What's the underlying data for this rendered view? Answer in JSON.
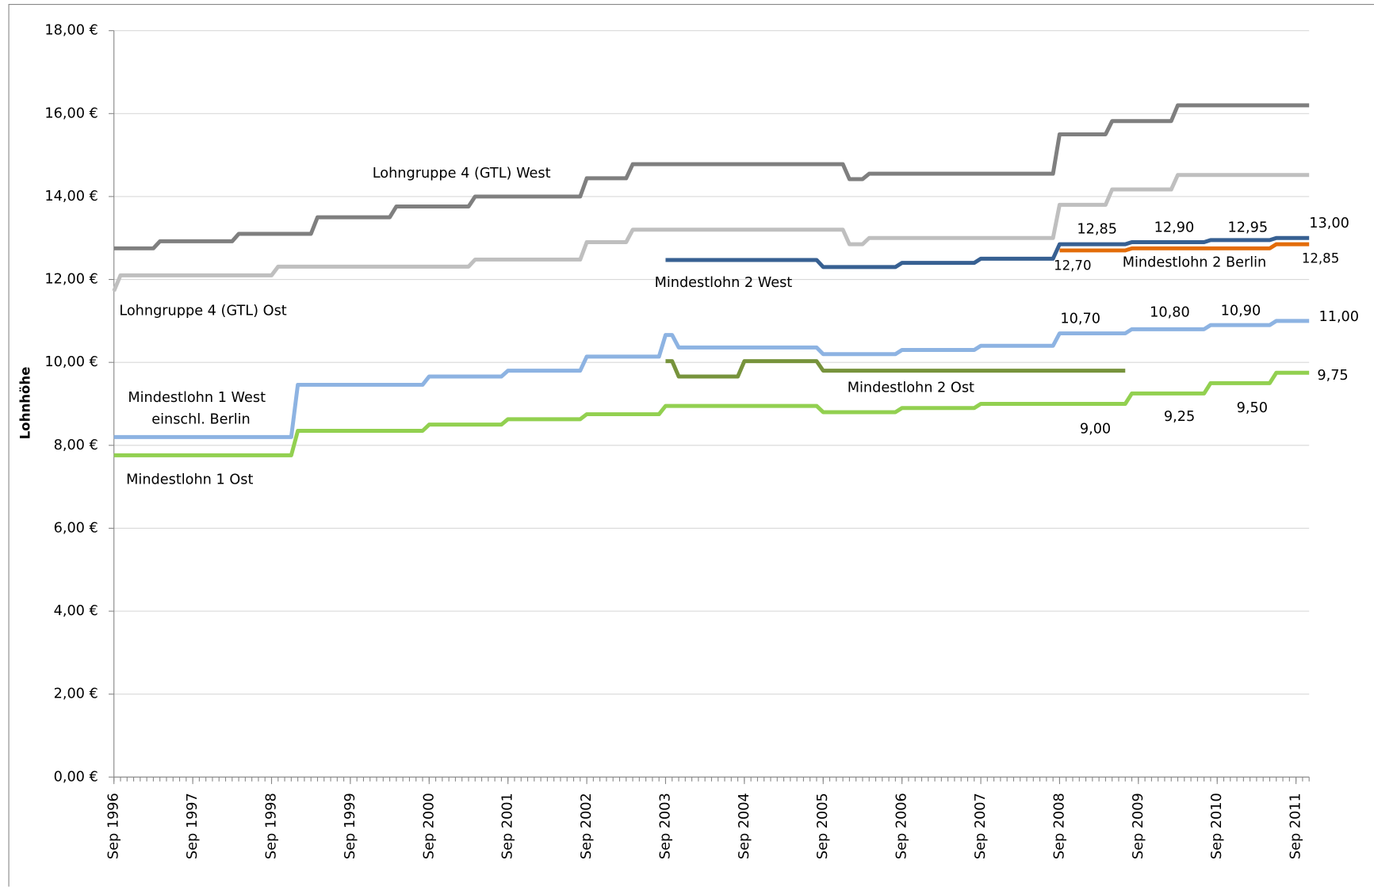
{
  "chart_data": {
    "type": "line",
    "y_axis_label": "Lohnhöhe",
    "xlim": [
      "1996-09",
      "2011-11"
    ],
    "xticks": [
      {
        "value": "1996-09",
        "label": "Sep 1996"
      },
      {
        "value": "1997-09",
        "label": "Sep 1997"
      },
      {
        "value": "1998-09",
        "label": "Sep 1998"
      },
      {
        "value": "1999-09",
        "label": "Sep 1999"
      },
      {
        "value": "2000-09",
        "label": "Sep 2000"
      },
      {
        "value": "2001-09",
        "label": "Sep 2001"
      },
      {
        "value": "2002-09",
        "label": "Sep 2002"
      },
      {
        "value": "2003-09",
        "label": "Sep 2003"
      },
      {
        "value": "2004-09",
        "label": "Sep 2004"
      },
      {
        "value": "2005-09",
        "label": "Sep 2005"
      },
      {
        "value": "2006-09",
        "label": "Sep 2006"
      },
      {
        "value": "2007-09",
        "label": "Sep 2007"
      },
      {
        "value": "2008-09",
        "label": "Sep 2008"
      },
      {
        "value": "2009-09",
        "label": "Sep 2009"
      },
      {
        "value": "2010-09",
        "label": "Sep 2010"
      },
      {
        "value": "2011-09",
        "label": "Sep 2011"
      }
    ],
    "ylim": [
      0,
      18
    ],
    "yticks": [
      {
        "value": 0,
        "label": "0,00 €"
      },
      {
        "value": 2,
        "label": "2,00 €"
      },
      {
        "value": 4,
        "label": "4,00 €"
      },
      {
        "value": 6,
        "label": "6,00 €"
      },
      {
        "value": 8,
        "label": "8,00 €"
      },
      {
        "value": 10,
        "label": "10,00 €"
      },
      {
        "value": 12,
        "label": "12,00 €"
      },
      {
        "value": 14,
        "label": "14,00 €"
      },
      {
        "value": 16,
        "label": "16,00 €"
      },
      {
        "value": 18,
        "label": "18,00 €"
      }
    ],
    "grid": true,
    "series": [
      {
        "name": "Lohngruppe 4 (GTL)  West",
        "color": "#7f7f7f",
        "x": [
          "1996-09",
          "1997-03",
          "1997-04",
          "1998-03",
          "1998-04",
          "1999-03",
          "1999-04",
          "2000-03",
          "2000-04",
          "2001-03",
          "2001-04",
          "2002-08",
          "2002-09",
          "2003-03",
          "2003-04",
          "2005-12",
          "2006-01",
          "2006-03",
          "2006-04",
          "2008-08",
          "2008-09",
          "2009-04",
          "2009-05",
          "2010-02",
          "2010-03",
          "2011-11"
        ],
        "values": [
          12.75,
          12.75,
          12.92,
          12.92,
          13.1,
          13.1,
          13.5,
          13.5,
          13.76,
          13.76,
          14.0,
          14.0,
          14.44,
          14.44,
          14.78,
          14.78,
          14.42,
          14.42,
          14.55,
          14.55,
          15.5,
          15.5,
          15.82,
          15.82,
          16.2,
          16.2
        ]
      },
      {
        "name": "Lohngruppe 4 (GTL)  Ost",
        "color": "#bfbfbf",
        "x": [
          "1996-09",
          "1996-10",
          "1998-09",
          "1998-10",
          "2001-03",
          "2001-04",
          "2002-08",
          "2002-09",
          "2003-03",
          "2003-04",
          "2005-12",
          "2006-01",
          "2006-03",
          "2006-04",
          "2008-08",
          "2008-09",
          "2009-04",
          "2009-05",
          "2010-02",
          "2010-03",
          "2011-11"
        ],
        "values": [
          11.72,
          12.1,
          12.1,
          12.31,
          12.31,
          12.48,
          12.48,
          12.9,
          12.9,
          13.2,
          13.2,
          12.85,
          12.85,
          13.0,
          13.0,
          13.8,
          13.8,
          14.17,
          14.17,
          14.52,
          14.52
        ]
      },
      {
        "name": "Mindestlohn 2 West",
        "color": "#376092",
        "x": [
          "2003-09",
          "2005-08",
          "2005-09",
          "2006-08",
          "2006-09",
          "2007-08",
          "2007-09",
          "2008-08",
          "2008-09",
          "2009-07",
          "2009-08",
          "2010-07",
          "2010-08",
          "2011-05",
          "2011-06",
          "2011-11"
        ],
        "values": [
          12.47,
          12.47,
          12.3,
          12.3,
          12.4,
          12.4,
          12.5,
          12.5,
          12.85,
          12.85,
          12.9,
          12.9,
          12.95,
          12.95,
          13.0,
          13.0
        ],
        "value_labels": [
          null,
          null,
          null,
          null,
          null,
          null,
          null,
          null,
          "12,85",
          null,
          "12,90",
          null,
          "12,95",
          null,
          null,
          "13,00"
        ]
      },
      {
        "name": "Mindestlohn 2 Berlin",
        "color": "#e36c09",
        "x": [
          "2008-09",
          "2009-07",
          "2009-08",
          "2011-05",
          "2011-06",
          "2011-11"
        ],
        "values": [
          12.7,
          12.7,
          12.75,
          12.75,
          12.85,
          12.85
        ],
        "value_labels": [
          "12,70",
          null,
          null,
          null,
          null,
          "12,85"
        ]
      },
      {
        "name": "Mindestlohn 1 West",
        "color": "#8db3e2",
        "x": [
          "1996-09",
          "1998-12",
          "1999-01",
          "2000-08",
          "2000-09",
          "2001-08",
          "2001-09",
          "2002-08",
          "2002-09",
          "2003-08",
          "2003-09",
          "2003-10",
          "2003-11",
          "2005-08",
          "2005-09",
          "2006-08",
          "2006-09",
          "2007-08",
          "2007-09",
          "2008-08",
          "2008-09",
          "2009-07",
          "2009-08",
          "2010-07",
          "2010-08",
          "2011-05",
          "2011-06",
          "2011-11"
        ],
        "values": [
          8.2,
          8.2,
          9.46,
          9.46,
          9.66,
          9.66,
          9.8,
          9.8,
          10.14,
          10.14,
          10.66,
          10.66,
          10.36,
          10.36,
          10.2,
          10.2,
          10.3,
          10.3,
          10.4,
          10.4,
          10.7,
          10.7,
          10.8,
          10.8,
          10.9,
          10.9,
          11.0,
          11.0
        ],
        "value_labels": [
          null,
          null,
          null,
          null,
          null,
          null,
          null,
          null,
          null,
          null,
          null,
          null,
          null,
          null,
          null,
          null,
          null,
          null,
          null,
          null,
          "10,70",
          null,
          "10,80",
          null,
          "10,90",
          null,
          null,
          "11,00"
        ]
      },
      {
        "name": "Mindestlohn 2 Ost",
        "color": "#77933c",
        "x": [
          "2003-09",
          "2003-10",
          "2003-11",
          "2004-08",
          "2004-09",
          "2005-08",
          "2005-09",
          "2009-07"
        ],
        "values": [
          10.03,
          10.03,
          9.66,
          9.66,
          10.03,
          10.03,
          9.8,
          9.8
        ]
      },
      {
        "name": "Mindestlohn 1 Ost",
        "color": "#92d050",
        "x": [
          "1996-09",
          "1998-12",
          "1999-01",
          "2000-08",
          "2000-09",
          "2001-08",
          "2001-09",
          "2002-08",
          "2002-09",
          "2003-08",
          "2003-09",
          "2005-08",
          "2005-09",
          "2006-08",
          "2006-09",
          "2007-08",
          "2007-09",
          "2009-07",
          "2009-08",
          "2010-07",
          "2010-08",
          "2011-05",
          "2011-06",
          "2011-11"
        ],
        "values": [
          7.76,
          7.76,
          8.35,
          8.35,
          8.5,
          8.5,
          8.63,
          8.63,
          8.75,
          8.75,
          8.95,
          8.95,
          8.8,
          8.8,
          8.9,
          8.9,
          9.0,
          9.0,
          9.25,
          9.25,
          9.5,
          9.5,
          9.75,
          9.75
        ],
        "value_labels": [
          null,
          null,
          null,
          null,
          null,
          null,
          null,
          null,
          null,
          null,
          null,
          null,
          null,
          null,
          null,
          null,
          "9,00",
          null,
          "9,25",
          null,
          "9,50",
          null,
          null,
          "9,75"
        ]
      }
    ],
    "annotations": [
      {
        "text": "einschl. Berlin",
        "color": "#e36c09"
      }
    ]
  }
}
